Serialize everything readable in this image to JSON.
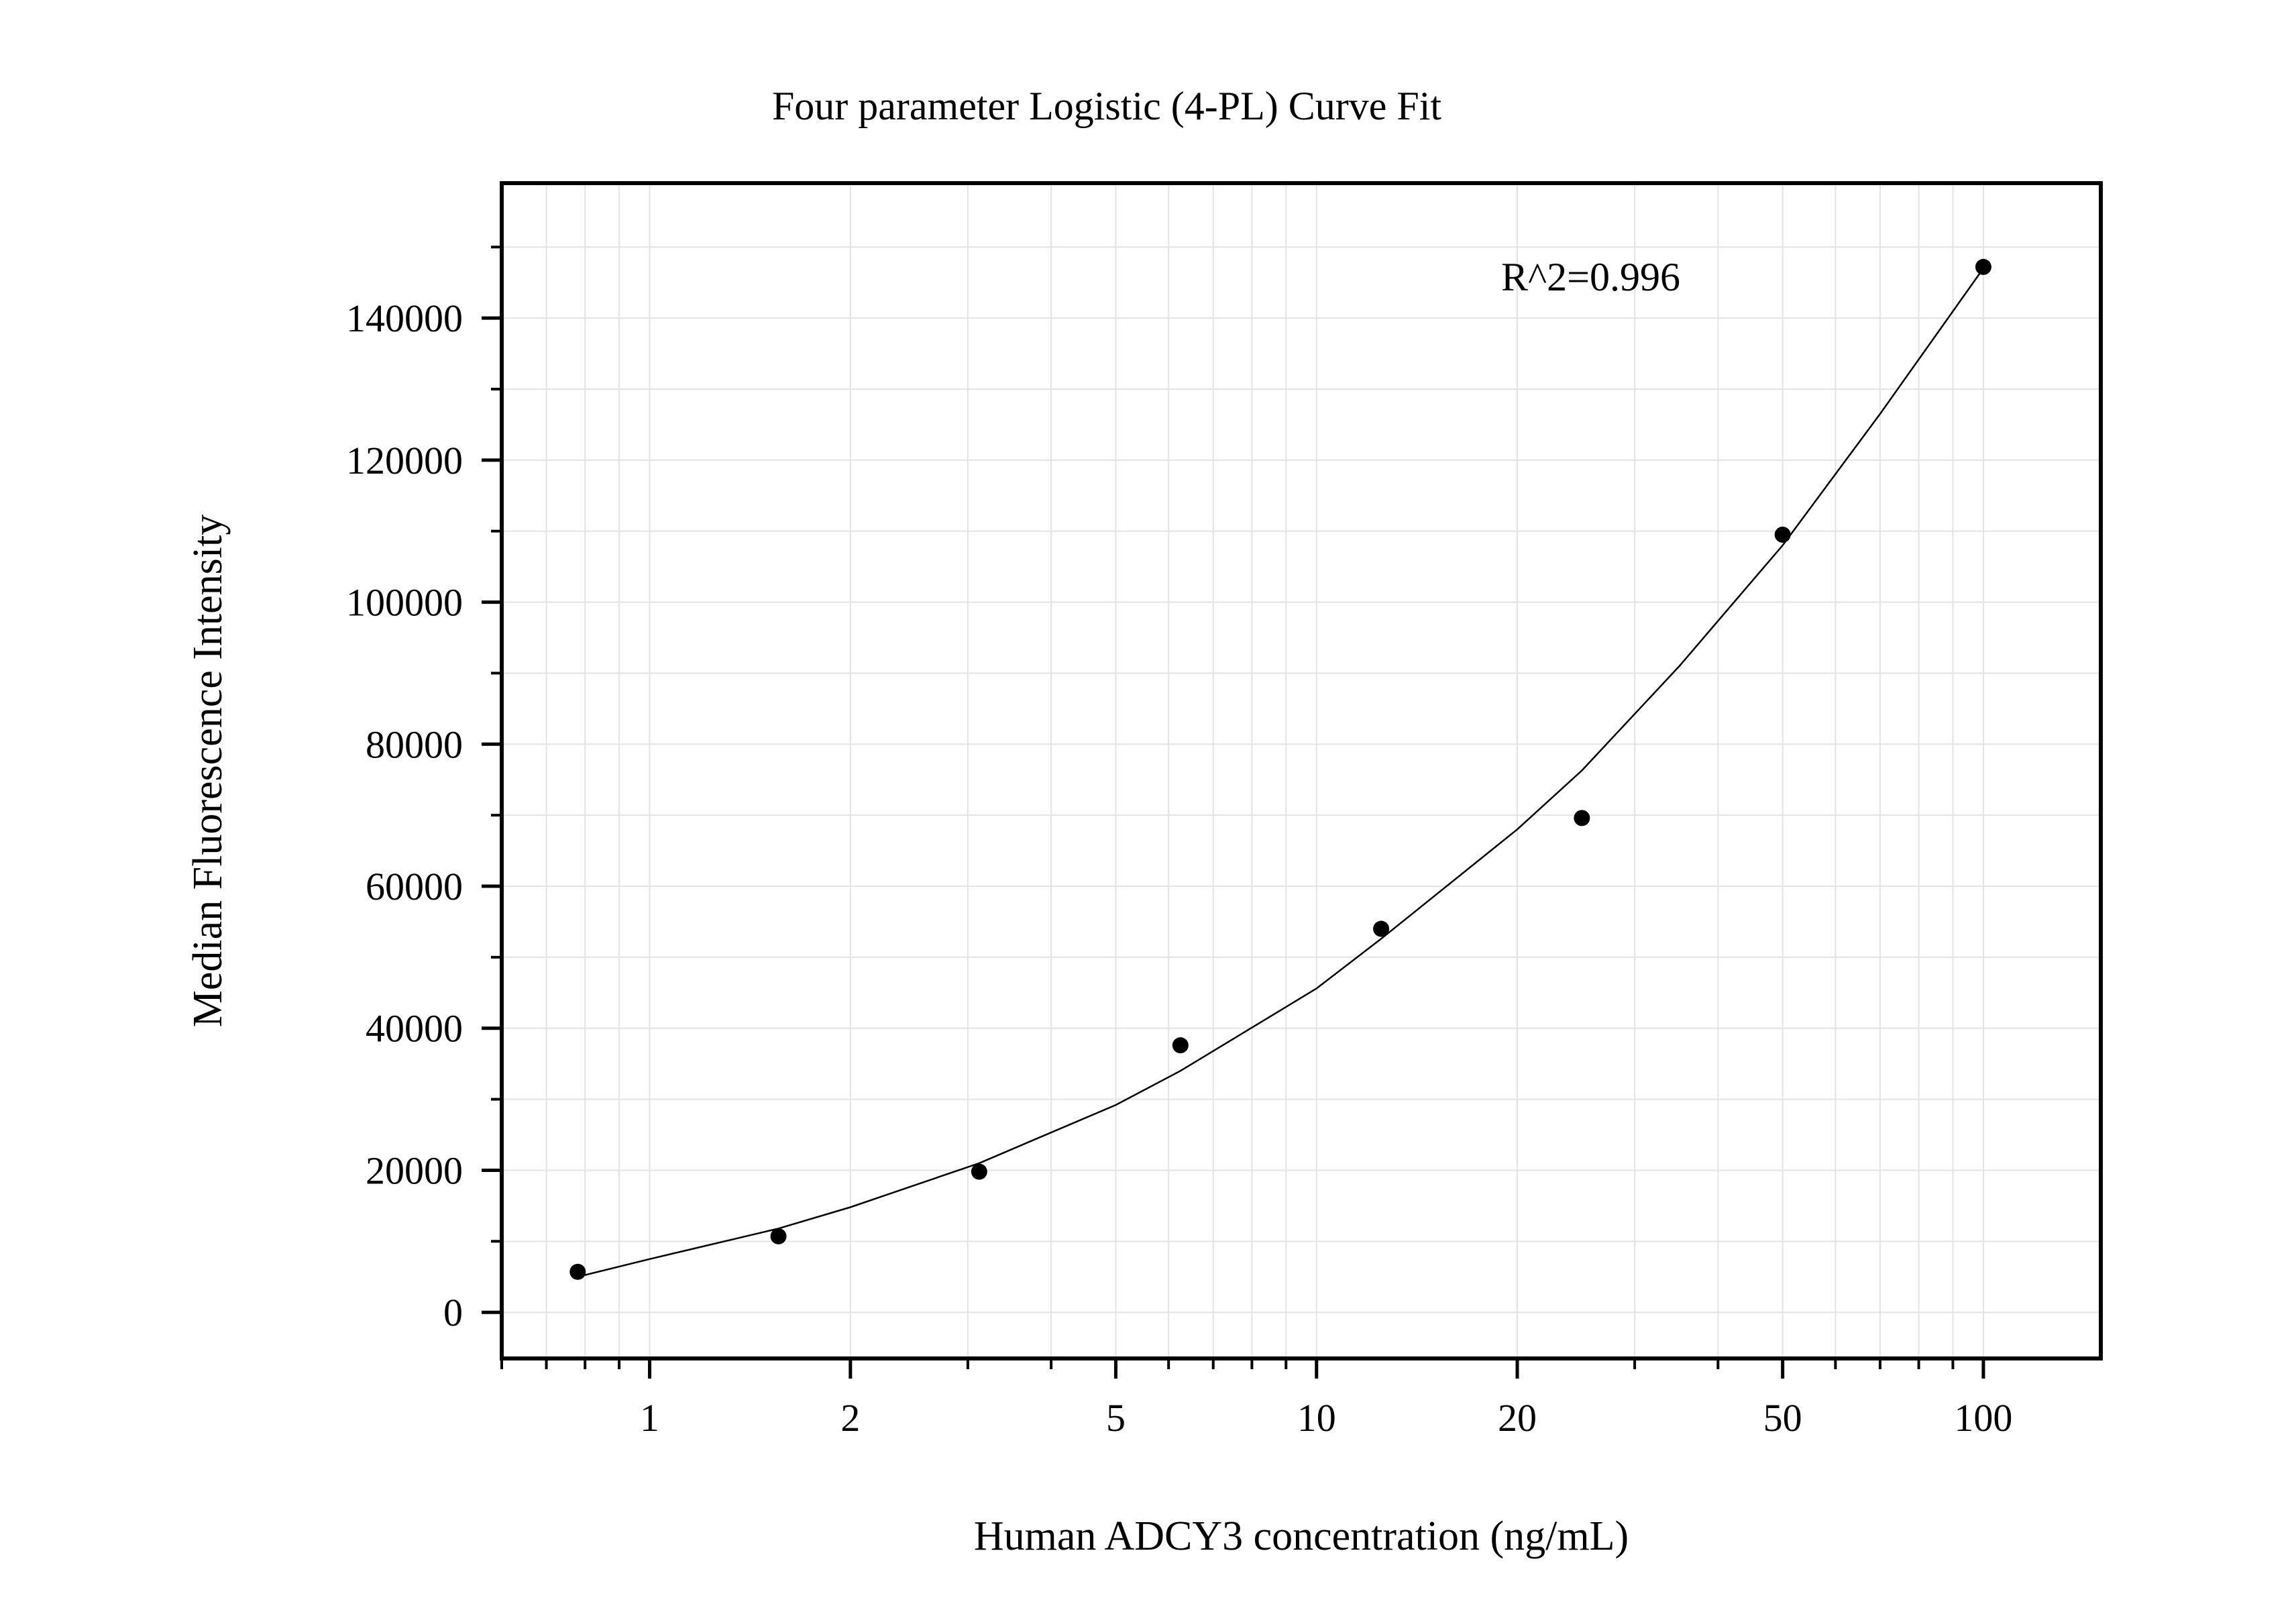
{
  "chart_data": {
    "type": "scatter",
    "title": "Four parameter Logistic (4-PL) Curve Fit",
    "xlabel": "Human ADCY3 concentration (ng/mL)",
    "ylabel": "Median Fluorescence Intensity",
    "x_scale": "log",
    "xlim": [
      0.6,
      150
    ],
    "ylim": [
      -6500,
      159000
    ],
    "x_ticks": [
      1,
      2,
      5,
      10,
      20,
      50,
      100
    ],
    "x_tick_labels": [
      "1",
      "2",
      "5",
      "10",
      "20",
      "50",
      "100"
    ],
    "y_ticks": [
      0,
      20000,
      40000,
      60000,
      80000,
      100000,
      120000,
      140000
    ],
    "y_tick_labels": [
      "0",
      "20000",
      "40000",
      "60000",
      "80000",
      "100000",
      "120000",
      "140000"
    ],
    "grid": true,
    "annotation": "R^2=0.996",
    "series": [
      {
        "type": "scatter",
        "x": [
          0.78,
          1.56,
          3.12,
          6.25,
          12.5,
          25,
          50,
          100
        ],
        "y": [
          5700,
          10700,
          19800,
          37600,
          54000,
          69600,
          109500,
          147200
        ]
      },
      {
        "type": "line",
        "fit": "4-PL",
        "x": [
          0.78,
          1,
          1.56,
          2,
          3.12,
          5,
          6.25,
          10,
          12.5,
          20,
          25,
          35,
          50,
          70,
          100
        ],
        "y": [
          5000,
          7500,
          11800,
          14800,
          21000,
          29200,
          34000,
          45600,
          52600,
          68000,
          76300,
          91000,
          108000,
          126500,
          147000
        ]
      }
    ]
  }
}
